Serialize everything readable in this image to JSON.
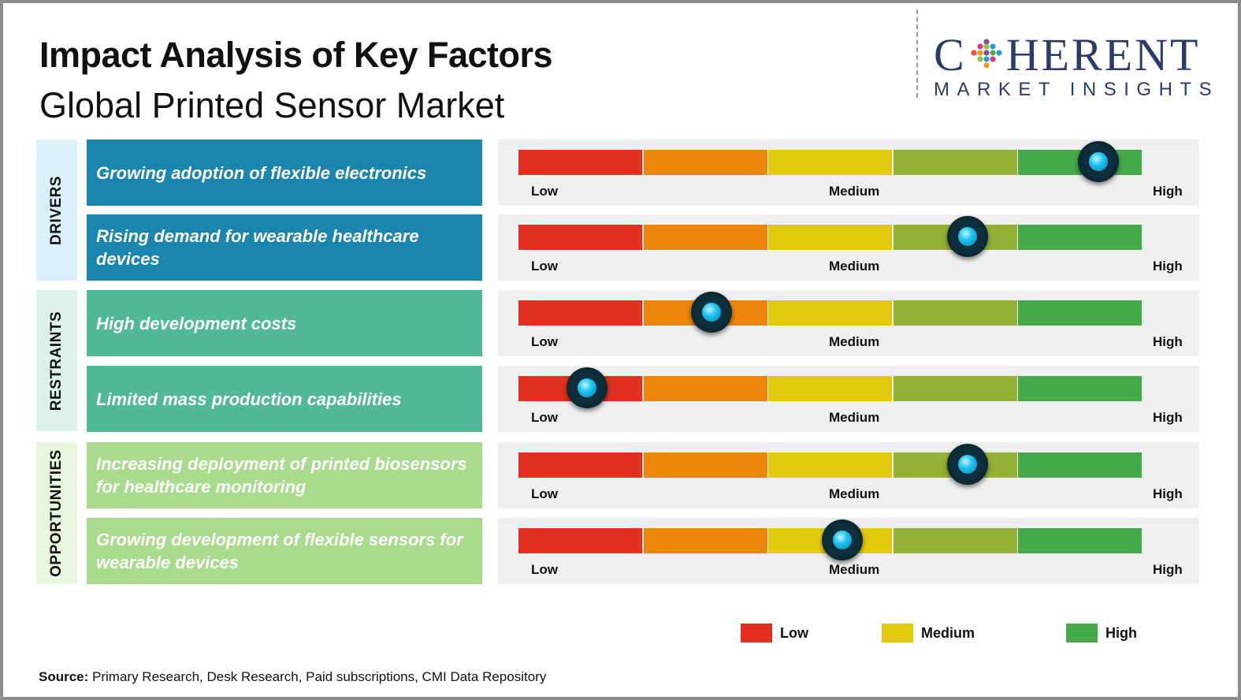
{
  "title": "Impact Analysis of Key Factors",
  "subtitle": "Global Printed Sensor Market",
  "logo": {
    "main": "C  HERENT",
    "sub": "MARKET INSIGHTS"
  },
  "scale": {
    "labels": [
      "Low",
      "Medium",
      "High"
    ],
    "colors": [
      "#e0301e",
      "#ec860c",
      "#e3c90e",
      "#93b136",
      "#46a94a"
    ]
  },
  "chart_data": {
    "type": "bar",
    "scale_min_label": "Low",
    "scale_mid_label": "Medium",
    "scale_max_label": "High",
    "categories": [
      "DRIVERS",
      "RESTRAINTS",
      "OPPORTUNITIES"
    ],
    "rows": [
      {
        "category": "DRIVERS",
        "label": "Growing adoption of flexible electronics",
        "value": 0.93
      },
      {
        "category": "DRIVERS",
        "label": "Rising demand for wearable healthcare devices",
        "value": 0.72
      },
      {
        "category": "RESTRAINTS",
        "label": "High development costs",
        "value": 0.31
      },
      {
        "category": "RESTRAINTS",
        "label": "Limited mass production capabilities",
        "value": 0.11
      },
      {
        "category": "OPPORTUNITIES",
        "label": "Increasing deployment of printed biosensors for healthcare monitoring",
        "value": 0.72
      },
      {
        "category": "OPPORTUNITIES",
        "label": "Growing development of flexible sensors for wearable devices",
        "value": 0.52
      }
    ]
  },
  "legend": [
    {
      "label": "Low",
      "color": "#e0301e"
    },
    {
      "label": "Medium",
      "color": "#e3c90e"
    },
    {
      "label": "High",
      "color": "#46a94a"
    }
  ],
  "source": {
    "prefix": "Source:",
    "text": " Primary Research, Desk Research, Paid subscriptions, CMI Data Repository"
  }
}
